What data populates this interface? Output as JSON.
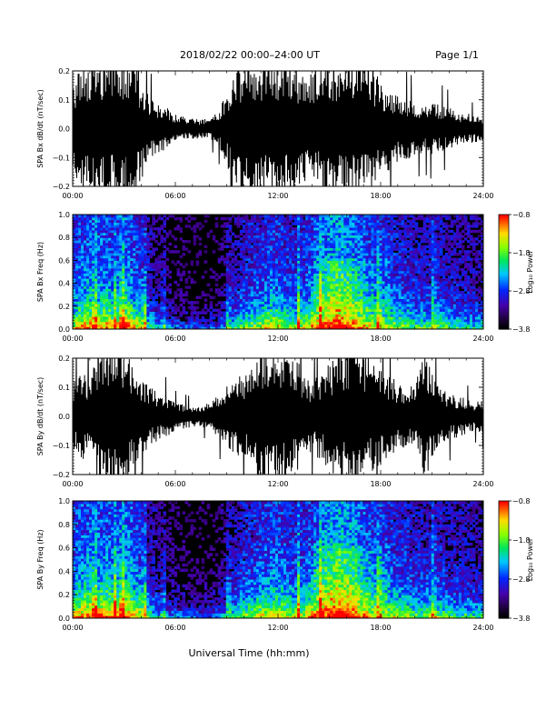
{
  "header": {
    "title": "2018/02/22  00:00–24:00 UT",
    "page": "Page 1/1"
  },
  "footer": {
    "xlabel": "Universal Time (hh:mm)"
  },
  "colors": {
    "trace": "#000000",
    "background": "#ffffff",
    "spectrogram_bg": "#000000"
  },
  "chart_data": [
    {
      "type": "line",
      "panel": 1,
      "ylabel": "SPA Bx dB/dt (nT/sec)",
      "xlim": [
        0,
        24
      ],
      "ylim": [
        -0.2,
        0.2
      ],
      "x_ticks": [
        "00:00",
        "06:00",
        "12:00",
        "18:00",
        "24:00"
      ],
      "y_ticks": [
        "0.2",
        "0.1",
        "0.0",
        "−0.1",
        "−0.2"
      ],
      "y_tick_values": [
        0.2,
        0.1,
        0.0,
        -0.1,
        -0.2
      ],
      "series": [
        {
          "envelope_hours": [
            0,
            0.5,
            1,
            1.5,
            2,
            2.5,
            3,
            3.5,
            4,
            4.5,
            5,
            5.5,
            6,
            6.5,
            7,
            7.5,
            8,
            8.5,
            9,
            9.5,
            10,
            10.5,
            11,
            11.5,
            12,
            12.5,
            13,
            13.5,
            14,
            14.5,
            15,
            15.5,
            16,
            16.5,
            17,
            17.5,
            18,
            18.5,
            19,
            19.5,
            20,
            20.5,
            21,
            21.5,
            22,
            22.5,
            23,
            23.5,
            24
          ],
          "envelope_amplitude": [
            0.12,
            0.2,
            0.2,
            0.2,
            0.2,
            0.2,
            0.2,
            0.2,
            0.15,
            0.09,
            0.07,
            0.06,
            0.045,
            0.035,
            0.03,
            0.028,
            0.03,
            0.05,
            0.1,
            0.2,
            0.2,
            0.2,
            0.2,
            0.2,
            0.2,
            0.19,
            0.17,
            0.15,
            0.16,
            0.18,
            0.2,
            0.2,
            0.2,
            0.2,
            0.19,
            0.17,
            0.14,
            0.12,
            0.1,
            0.09,
            0.08,
            0.07,
            0.08,
            0.07,
            0.06,
            0.05,
            0.045,
            0.04,
            0.035
          ]
        }
      ]
    },
    {
      "type": "heatmap",
      "panel": 2,
      "ylabel": "SPA Bx Freq (Hz)",
      "xlim": [
        0,
        24
      ],
      "ylim": [
        0,
        1.0
      ],
      "x_ticks": [
        "00:00",
        "06:00",
        "12:00",
        "18:00",
        "24:00"
      ],
      "y_ticks": [
        "1.0",
        "0.8",
        "0.6",
        "0.4",
        "0.2",
        "0.0"
      ],
      "y_tick_values": [
        1.0,
        0.8,
        0.6,
        0.4,
        0.2,
        0.0
      ],
      "colorbar": {
        "label": "Log₁₀ Power",
        "range": [
          -3.8,
          -0.8
        ],
        "ticks": [
          "−0.8",
          "−1.8",
          "−2.8",
          "−3.8"
        ],
        "tick_values": [
          -0.8,
          -1.8,
          -2.8,
          -3.8
        ]
      },
      "activity_hours": [
        0,
        0.5,
        1,
        1.5,
        2,
        2.5,
        3,
        3.5,
        4,
        4.5,
        5,
        5.5,
        6,
        6.5,
        7,
        7.5,
        8,
        8.5,
        9,
        9.5,
        10,
        10.5,
        11,
        11.5,
        12,
        12.5,
        13,
        13.5,
        14,
        14.5,
        15,
        15.5,
        16,
        16.5,
        17,
        17.5,
        18,
        18.5,
        19,
        19.5,
        20,
        20.5,
        21,
        21.5,
        22,
        22.5,
        23,
        23.5,
        24
      ],
      "activity": [
        0.45,
        0.55,
        0.6,
        0.55,
        0.6,
        0.5,
        0.65,
        0.55,
        0.45,
        0.3,
        0.2,
        0.15,
        0.12,
        0.1,
        0.08,
        0.07,
        0.08,
        0.1,
        0.2,
        0.3,
        0.38,
        0.42,
        0.45,
        0.5,
        0.5,
        0.45,
        0.42,
        0.45,
        0.55,
        0.62,
        0.7,
        0.75,
        0.72,
        0.65,
        0.55,
        0.5,
        0.48,
        0.45,
        0.42,
        0.4,
        0.36,
        0.34,
        0.38,
        0.36,
        0.32,
        0.3,
        0.28,
        0.26,
        0.25
      ],
      "bright_streak_hours": [
        1.3,
        2.5,
        2.9,
        4.2,
        5.3,
        9.1,
        13.2,
        14.5,
        17.9,
        21.1
      ]
    },
    {
      "type": "line",
      "panel": 3,
      "ylabel": "SPA By dB/dt (nT/sec)",
      "xlim": [
        0,
        24
      ],
      "ylim": [
        -0.2,
        0.2
      ],
      "x_ticks": [
        "00:00",
        "06:00",
        "12:00",
        "18:00",
        "24:00"
      ],
      "y_ticks": [
        "0.2",
        "0.1",
        "0.0",
        "−0.1",
        "−0.2"
      ],
      "y_tick_values": [
        0.2,
        0.1,
        0.0,
        -0.1,
        -0.2
      ],
      "series": [
        {
          "envelope_hours": [
            0,
            0.5,
            1,
            1.5,
            2,
            2.5,
            3,
            3.5,
            4,
            4.5,
            5,
            5.5,
            6,
            6.5,
            7,
            7.5,
            8,
            8.5,
            9,
            9.5,
            10,
            10.5,
            11,
            11.5,
            12,
            12.5,
            13,
            13.5,
            14,
            14.5,
            15,
            15.5,
            16,
            16.5,
            17,
            17.5,
            18,
            18.5,
            19,
            19.5,
            20,
            20.5,
            21,
            21.5,
            22,
            22.5,
            23,
            23.5,
            24
          ],
          "envelope_amplitude": [
            0.1,
            0.12,
            0.13,
            0.2,
            0.2,
            0.2,
            0.2,
            0.17,
            0.12,
            0.09,
            0.07,
            0.06,
            0.04,
            0.035,
            0.03,
            0.03,
            0.04,
            0.06,
            0.09,
            0.11,
            0.12,
            0.14,
            0.2,
            0.2,
            0.2,
            0.2,
            0.17,
            0.13,
            0.1,
            0.13,
            0.15,
            0.18,
            0.2,
            0.2,
            0.18,
            0.16,
            0.14,
            0.12,
            0.1,
            0.09,
            0.09,
            0.2,
            0.12,
            0.08,
            0.07,
            0.06,
            0.05,
            0.04,
            0.05
          ]
        }
      ]
    },
    {
      "type": "heatmap",
      "panel": 4,
      "ylabel": "SPA By Freq (Hz)",
      "xlim": [
        0,
        24
      ],
      "ylim": [
        0,
        1.0
      ],
      "x_ticks": [
        "00:00",
        "06:00",
        "12:00",
        "18:00",
        "24:00"
      ],
      "y_ticks": [
        "1.0",
        "0.8",
        "0.6",
        "0.4",
        "0.2",
        "0.0"
      ],
      "y_tick_values": [
        1.0,
        0.8,
        0.6,
        0.4,
        0.2,
        0.0
      ],
      "colorbar": {
        "label": "Log₁₀ Power",
        "range": [
          -3.8,
          -0.8
        ],
        "ticks": [
          "−0.8",
          "−1.8",
          "−2.8",
          "−3.8"
        ],
        "tick_values": [
          -0.8,
          -1.8,
          -2.8,
          -3.8
        ]
      },
      "activity_hours": [
        0,
        0.5,
        1,
        1.5,
        2,
        2.5,
        3,
        3.5,
        4,
        4.5,
        5,
        5.5,
        6,
        6.5,
        7,
        7.5,
        8,
        8.5,
        9,
        9.5,
        10,
        10.5,
        11,
        11.5,
        12,
        12.5,
        13,
        13.5,
        14,
        14.5,
        15,
        15.5,
        16,
        16.5,
        17,
        17.5,
        18,
        18.5,
        19,
        19.5,
        20,
        20.5,
        21,
        21.5,
        22,
        22.5,
        23,
        23.5,
        24
      ],
      "activity": [
        0.5,
        0.58,
        0.62,
        0.6,
        0.62,
        0.55,
        0.66,
        0.58,
        0.48,
        0.32,
        0.22,
        0.16,
        0.14,
        0.12,
        0.1,
        0.09,
        0.1,
        0.12,
        0.22,
        0.32,
        0.4,
        0.44,
        0.48,
        0.52,
        0.52,
        0.48,
        0.45,
        0.48,
        0.56,
        0.64,
        0.72,
        0.78,
        0.75,
        0.68,
        0.58,
        0.52,
        0.5,
        0.47,
        0.44,
        0.42,
        0.38,
        0.36,
        0.4,
        0.38,
        0.34,
        0.32,
        0.3,
        0.28,
        0.27
      ],
      "bright_streak_hours": [
        1.3,
        2.5,
        2.9,
        4.2,
        5.3,
        9.1,
        13.2,
        14.5,
        17.9,
        21.1
      ]
    }
  ]
}
